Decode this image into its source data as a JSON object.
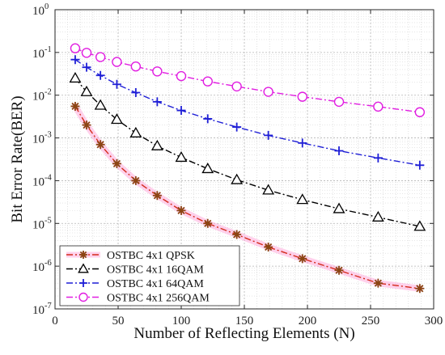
{
  "chart_data": {
    "type": "line",
    "title": "",
    "xlabel": "Number of Reflecting Elements (N)",
    "ylabel": "Bit Error Rate(BER)",
    "xlim": [
      0,
      300
    ],
    "ylim": [
      1e-07,
      1
    ],
    "yscale": "log",
    "grid": true,
    "legend_position": "bottom-left",
    "x_ticks": [
      "0",
      "50",
      "100",
      "150",
      "200",
      "250",
      "300"
    ],
    "y_tick_base": "10",
    "y_tick_exponents": [
      "-7",
      "-6",
      "-5",
      "-4",
      "-3",
      "-2",
      "-1",
      "0"
    ],
    "x": [
      16,
      25,
      36,
      49,
      64,
      81,
      100,
      121,
      144,
      169,
      196,
      225,
      256,
      289
    ],
    "series": [
      {
        "name": "OSTBC 4x1 QPSK",
        "color": "#d42a1b",
        "marker_color": "#8b4513",
        "marker": "asterisk",
        "highlight": "#ff9ad5",
        "values": [
          0.0055,
          0.002,
          0.0007,
          0.00025,
          0.0001,
          4.5e-05,
          2e-05,
          1e-05,
          5.5e-06,
          2.8e-06,
          1.5e-06,
          8e-07,
          4e-07,
          3e-07
        ]
      },
      {
        "name": "OSTBC 4x1 16QAM",
        "color": "#000000",
        "marker_color": "#000000",
        "marker": "triangle",
        "values": [
          0.025,
          0.012,
          0.0058,
          0.0027,
          0.0013,
          0.00065,
          0.00035,
          0.00019,
          0.000105,
          6e-05,
          3.6e-05,
          2.2e-05,
          1.4e-05,
          8.5e-06
        ]
      },
      {
        "name": "OSTBC 4x1 64QAM",
        "color": "#1f1fd6",
        "marker_color": "#1f1fd6",
        "marker": "plus",
        "values": [
          0.068,
          0.045,
          0.029,
          0.018,
          0.0115,
          0.007,
          0.0044,
          0.0028,
          0.0018,
          0.00115,
          0.00076,
          0.0005,
          0.00034,
          0.00023
        ]
      },
      {
        "name": "OSTBC 4x1 256QAM",
        "color": "#e11ee1",
        "marker_color": "#e11ee1",
        "marker": "circle",
        "values": [
          0.125,
          0.098,
          0.078,
          0.06,
          0.047,
          0.036,
          0.028,
          0.021,
          0.016,
          0.012,
          0.0092,
          0.007,
          0.0054,
          0.004
        ]
      }
    ]
  }
}
